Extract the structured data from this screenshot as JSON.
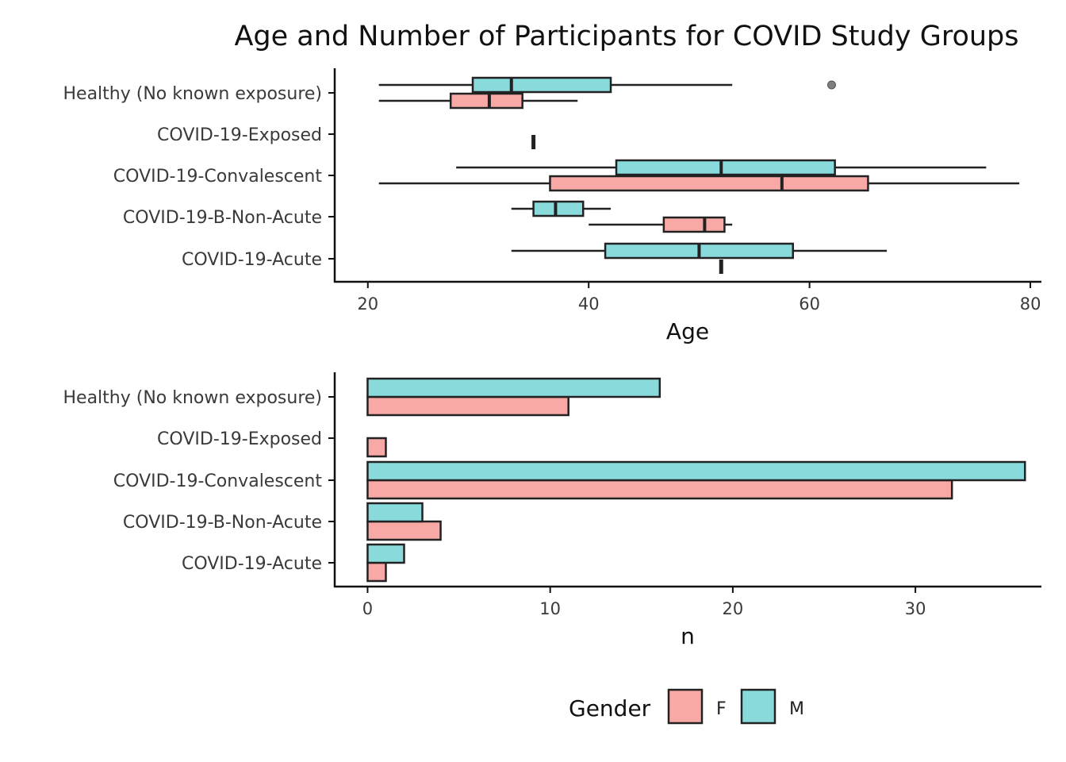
{
  "title": "Age and Number of Participants for COVID Study Groups",
  "colors": {
    "F": "#F8A9A6",
    "M": "#89DADB",
    "outline": "#222222",
    "outlier": "#7f7f7f"
  },
  "legend": {
    "title": "Gender",
    "items": [
      {
        "key": "F",
        "label": "F"
      },
      {
        "key": "M",
        "label": "M"
      }
    ]
  },
  "chart_data": [
    {
      "type": "boxplot",
      "orientation": "horizontal",
      "title": "Age and Number of Participants for COVID Study Groups",
      "xlabel": "Age",
      "ylabel": "",
      "xlim": [
        17,
        81
      ],
      "xticks": [
        20,
        40,
        60,
        80
      ],
      "grid": false,
      "categories": [
        "Healthy (No known exposure)",
        "COVID-19-Exposed",
        "COVID-19-Convalescent",
        "COVID-19-B-Non-Acute",
        "COVID-19-Acute"
      ],
      "groups": [
        {
          "category": "Healthy (No known exposure)",
          "gender": "M",
          "min": 21,
          "q1": 29.5,
          "median": 33,
          "q3": 42,
          "max": 53,
          "outliers": [
            62
          ]
        },
        {
          "category": "Healthy (No known exposure)",
          "gender": "F",
          "min": 21,
          "q1": 27.5,
          "median": 31,
          "q3": 34,
          "max": 39,
          "outliers": []
        },
        {
          "category": "COVID-19-Exposed",
          "gender": "F",
          "min": 35,
          "q1": 35,
          "median": 35,
          "q3": 35,
          "max": 35,
          "outliers": []
        },
        {
          "category": "COVID-19-Convalescent",
          "gender": "M",
          "min": 28,
          "q1": 42.5,
          "median": 52,
          "q3": 62.3,
          "max": 76,
          "outliers": []
        },
        {
          "category": "COVID-19-Convalescent",
          "gender": "F",
          "min": 21,
          "q1": 36.5,
          "median": 57.5,
          "q3": 65.3,
          "max": 79,
          "outliers": []
        },
        {
          "category": "COVID-19-B-Non-Acute",
          "gender": "M",
          "min": 33,
          "q1": 35,
          "median": 37,
          "q3": 39.5,
          "max": 42,
          "outliers": []
        },
        {
          "category": "COVID-19-B-Non-Acute",
          "gender": "F",
          "min": 40,
          "q1": 46.8,
          "median": 50.5,
          "q3": 52.3,
          "max": 53,
          "outliers": []
        },
        {
          "category": "COVID-19-Acute",
          "gender": "M",
          "min": 33,
          "q1": 41.5,
          "median": 50,
          "q3": 58.5,
          "max": 67,
          "outliers": []
        },
        {
          "category": "COVID-19-Acute",
          "gender": "F",
          "min": 52,
          "q1": 52,
          "median": 52,
          "q3": 52,
          "max": 52,
          "outliers": []
        }
      ]
    },
    {
      "type": "bar",
      "orientation": "horizontal",
      "title": "",
      "xlabel": "n",
      "ylabel": "",
      "xlim": [
        -1.8,
        36.9
      ],
      "xticks": [
        0,
        10,
        20,
        30
      ],
      "grid": false,
      "categories": [
        "Healthy (No known exposure)",
        "COVID-19-Exposed",
        "COVID-19-Convalescent",
        "COVID-19-B-Non-Acute",
        "COVID-19-Acute"
      ],
      "series": [
        {
          "name": "F",
          "values": [
            11,
            1,
            32,
            4,
            1
          ]
        },
        {
          "name": "M",
          "values": [
            16,
            0,
            36,
            3,
            2
          ]
        }
      ]
    }
  ]
}
